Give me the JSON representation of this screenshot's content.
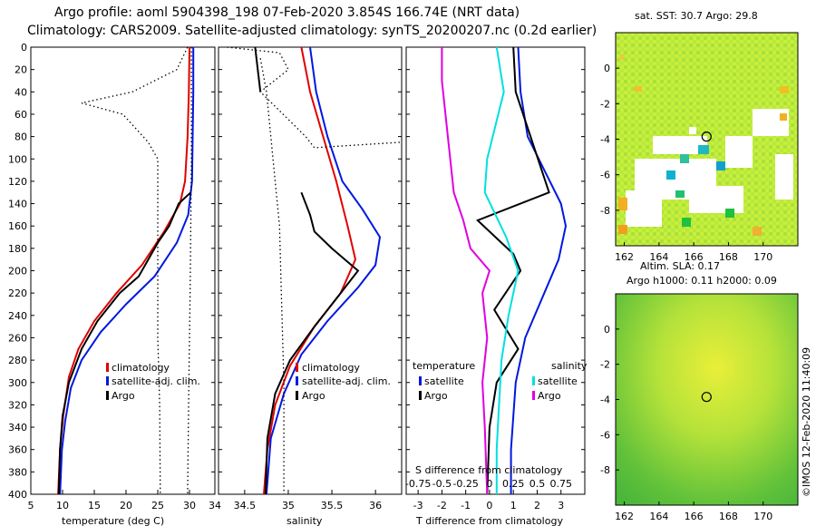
{
  "header": {
    "line1": "Argo profile: aoml 5904398_198 07-Feb-2020 3.854S 166.74E (NRT data)",
    "line2": "Climatology: CARS2009. Satellite-adjusted climatology: synTS_20200207.nc (0.2d earlier)"
  },
  "colors": {
    "climatology": "#e00000",
    "satellite": "#0018e0",
    "argo": "#000000",
    "sat_salinity": "#00e0e0",
    "argo_salinity": "#e000e0"
  },
  "chart_data": [
    {
      "type": "line",
      "id": "temperature",
      "xlabel": "temperature (deg C)",
      "xlim": [
        5,
        34
      ],
      "ylim": [
        0,
        400
      ],
      "xticks": [
        5,
        10,
        15,
        20,
        25,
        30,
        34
      ],
      "yticks": [
        0,
        20,
        40,
        60,
        80,
        100,
        120,
        140,
        160,
        180,
        200,
        220,
        240,
        260,
        280,
        300,
        320,
        340,
        360,
        380,
        400
      ],
      "legend": [
        "climatology",
        "satellite-adj. clim.",
        "Argo"
      ],
      "series": [
        {
          "name": "climatology",
          "color": "#e00000",
          "dash": false,
          "points": [
            [
              30.0,
              0
            ],
            [
              29.9,
              40
            ],
            [
              29.7,
              80
            ],
            [
              29.3,
              120
            ],
            [
              28.5,
              140
            ],
            [
              26.0,
              165
            ],
            [
              22.5,
              195
            ],
            [
              18.5,
              220
            ],
            [
              15.0,
              245
            ],
            [
              12.5,
              270
            ],
            [
              11.0,
              295
            ],
            [
              10.1,
              330
            ],
            [
              9.6,
              360
            ],
            [
              9.3,
              400
            ]
          ]
        },
        {
          "name": "satellite-adj. clim.",
          "color": "#0018e0",
          "dash": false,
          "points": [
            [
              30.6,
              0
            ],
            [
              30.6,
              40
            ],
            [
              30.5,
              80
            ],
            [
              30.4,
              120
            ],
            [
              29.8,
              150
            ],
            [
              28.0,
              175
            ],
            [
              24.5,
              205
            ],
            [
              20.0,
              230
            ],
            [
              16.0,
              255
            ],
            [
              13.0,
              280
            ],
            [
              11.3,
              305
            ],
            [
              10.4,
              335
            ],
            [
              9.9,
              360
            ],
            [
              9.6,
              400
            ]
          ]
        },
        {
          "name": "Argo",
          "color": "#000000",
          "dash": false,
          "points": [
            [
              30.2,
              130
            ],
            [
              28.3,
              140
            ],
            [
              26.8,
              160
            ],
            [
              25.0,
              175
            ],
            [
              23.5,
              190
            ],
            [
              22.0,
              205
            ],
            [
              19.0,
              220
            ],
            [
              15.5,
              245
            ],
            [
              13.0,
              270
            ],
            [
              11.0,
              300
            ],
            [
              10.0,
              330
            ],
            [
              9.6,
              360
            ],
            [
              9.4,
              400
            ]
          ]
        },
        {
          "name": "clim. std lower",
          "color": "#000000",
          "dash": true,
          "points": [
            [
              29.7,
              0
            ],
            [
              28.0,
              20
            ],
            [
              21.0,
              40
            ],
            [
              13.0,
              50
            ],
            [
              19.5,
              60
            ],
            [
              23.5,
              85
            ],
            [
              25.0,
              100
            ],
            [
              25.0,
              140
            ],
            [
              25.0,
              200
            ],
            [
              25.0,
              260
            ],
            [
              25.3,
              320
            ],
            [
              25.4,
              400
            ]
          ]
        },
        {
          "name": "clim. std upper",
          "color": "#000000",
          "dash": true,
          "points": [
            [
              30.3,
              0
            ],
            [
              30.3,
              100
            ],
            [
              30.2,
              160
            ],
            [
              30.1,
              220
            ],
            [
              29.9,
              300
            ],
            [
              29.7,
              400
            ]
          ]
        }
      ]
    },
    {
      "type": "line",
      "id": "salinity",
      "xlabel": "salinity",
      "xlim": [
        34.2,
        36.3
      ],
      "ylim": [
        0,
        400
      ],
      "xticks": [
        34.5,
        35,
        35.5,
        36
      ],
      "legend": [
        "climatology",
        "satellite-adj. clim.",
        "Argo"
      ],
      "series": [
        {
          "name": "climatology",
          "color": "#e00000",
          "dash": false,
          "points": [
            [
              35.15,
              0
            ],
            [
              35.25,
              40
            ],
            [
              35.4,
              80
            ],
            [
              35.55,
              120
            ],
            [
              35.68,
              160
            ],
            [
              35.77,
              190
            ],
            [
              35.6,
              220
            ],
            [
              35.3,
              250
            ],
            [
              35.02,
              285
            ],
            [
              34.85,
              320
            ],
            [
              34.76,
              360
            ],
            [
              34.72,
              400
            ]
          ]
        },
        {
          "name": "satellite-adj. clim.",
          "color": "#0018e0",
          "dash": false,
          "points": [
            [
              35.25,
              0
            ],
            [
              35.32,
              40
            ],
            [
              35.45,
              80
            ],
            [
              35.62,
              120
            ],
            [
              35.85,
              145
            ],
            [
              36.05,
              170
            ],
            [
              36.0,
              195
            ],
            [
              35.8,
              215
            ],
            [
              35.45,
              245
            ],
            [
              35.15,
              275
            ],
            [
              34.95,
              310
            ],
            [
              34.8,
              350
            ],
            [
              34.75,
              400
            ]
          ]
        },
        {
          "name": "Argo",
          "color": "#000000",
          "dash": false,
          "points": [
            [
              35.15,
              130
            ],
            [
              35.25,
              150
            ],
            [
              35.3,
              165
            ],
            [
              35.5,
              180
            ],
            [
              35.8,
              200
            ],
            [
              35.6,
              220
            ],
            [
              35.3,
              250
            ],
            [
              35.02,
              280
            ],
            [
              34.85,
              310
            ],
            [
              34.76,
              350
            ],
            [
              34.74,
              400
            ]
          ]
        },
        {
          "name": "Argo near-surface",
          "color": "#000000",
          "dash": false,
          "points": [
            [
              34.62,
              0
            ],
            [
              34.65,
              20
            ],
            [
              34.68,
              40
            ]
          ]
        },
        {
          "name": "clim. std outer",
          "color": "#000000",
          "dash": true,
          "points": [
            [
              34.3,
              0
            ],
            [
              34.9,
              5
            ],
            [
              35.0,
              20
            ],
            [
              34.68,
              40
            ],
            [
              35.2,
              80
            ],
            [
              35.3,
              90
            ],
            [
              36.3,
              85
            ]
          ]
        },
        {
          "name": "clim. std inner",
          "color": "#000000",
          "dash": true,
          "points": [
            [
              34.68,
              10
            ],
            [
              34.75,
              40
            ],
            [
              34.8,
              80
            ],
            [
              34.85,
              120
            ],
            [
              34.9,
              160
            ],
            [
              34.92,
              220
            ],
            [
              34.95,
              300
            ],
            [
              34.95,
              400
            ]
          ]
        }
      ]
    },
    {
      "type": "line",
      "id": "difference",
      "xlabel": "T difference from climatology",
      "title_inner": "S difference from climatology",
      "xlim": [
        -3.5,
        4
      ],
      "ylim": [
        0,
        400
      ],
      "xticks": [
        -3,
        -2,
        -1,
        0,
        1,
        2,
        3
      ],
      "xticks_top_labels": [
        "-0.75",
        "-0.5",
        "-0.25",
        "0",
        "0.25",
        "0.5",
        "0.75"
      ],
      "legend_left_title": "temperature",
      "legend_right_title": "salinity",
      "legend_left": [
        "satellite",
        "Argo"
      ],
      "legend_right": [
        "satellite",
        "Argo"
      ],
      "series": [
        {
          "name": "T satellite",
          "color": "#0018e0",
          "dash": false,
          "points": [
            [
              1.2,
              0
            ],
            [
              1.3,
              40
            ],
            [
              1.6,
              80
            ],
            [
              2.3,
              110
            ],
            [
              3.0,
              140
            ],
            [
              3.2,
              160
            ],
            [
              2.9,
              190
            ],
            [
              2.3,
              220
            ],
            [
              1.5,
              260
            ],
            [
              1.1,
              300
            ],
            [
              0.9,
              360
            ],
            [
              0.9,
              400
            ]
          ]
        },
        {
          "name": "T Argo",
          "color": "#000000",
          "dash": false,
          "points": [
            [
              1.0,
              0
            ],
            [
              1.1,
              40
            ],
            [
              2.5,
              130
            ],
            [
              -0.5,
              155
            ],
            [
              1.0,
              185
            ],
            [
              1.3,
              200
            ],
            [
              0.2,
              235
            ],
            [
              1.2,
              270
            ],
            [
              0.3,
              300
            ],
            [
              0.0,
              340
            ],
            [
              -0.1,
              400
            ]
          ]
        },
        {
          "name": "S satellite",
          "color": "#00e0e0",
          "dash": false,
          "points": [
            [
              0.3,
              0
            ],
            [
              0.6,
              40
            ],
            [
              -0.1,
              100
            ],
            [
              -0.2,
              130
            ],
            [
              0.7,
              170
            ],
            [
              1.2,
              200
            ],
            [
              0.8,
              240
            ],
            [
              0.5,
              280
            ],
            [
              0.4,
              320
            ],
            [
              0.3,
              360
            ],
            [
              0.3,
              400
            ]
          ]
        },
        {
          "name": "S Argo",
          "color": "#e000e0",
          "dash": false,
          "points": [
            [
              -2.0,
              0
            ],
            [
              -2.0,
              30
            ],
            [
              -1.5,
              130
            ],
            [
              -1.1,
              155
            ],
            [
              -0.8,
              180
            ],
            [
              0.0,
              200
            ],
            [
              -0.3,
              220
            ],
            [
              -0.1,
              260
            ],
            [
              -0.3,
              300
            ],
            [
              -0.2,
              340
            ],
            [
              -0.1,
              400
            ]
          ]
        }
      ]
    },
    {
      "type": "heatmap",
      "id": "sst_map",
      "title": "sat. SST: 30.7  Argo: 29.8",
      "xlim": [
        161.5,
        172
      ],
      "ylim": [
        -10,
        2
      ],
      "xticks": [
        162,
        164,
        166,
        168,
        170
      ],
      "yticks": [
        0,
        -2,
        -4,
        -6,
        -8
      ],
      "marker": [
        166.74,
        -3.854
      ]
    },
    {
      "type": "heatmap",
      "id": "sla_map",
      "title": "Altim. SLA: 0.17",
      "subtitle": "Argo h1000: 0.11 h2000: 0.09",
      "xlim": [
        161.5,
        172
      ],
      "ylim": [
        -10,
        2
      ],
      "xticks": [
        162,
        164,
        166,
        168,
        170
      ],
      "yticks": [
        0,
        -2,
        -4,
        -6,
        -8
      ],
      "marker": [
        166.74,
        -3.854
      ]
    }
  ],
  "credit": "©IMOS 12-Feb-2020 11:40:09"
}
